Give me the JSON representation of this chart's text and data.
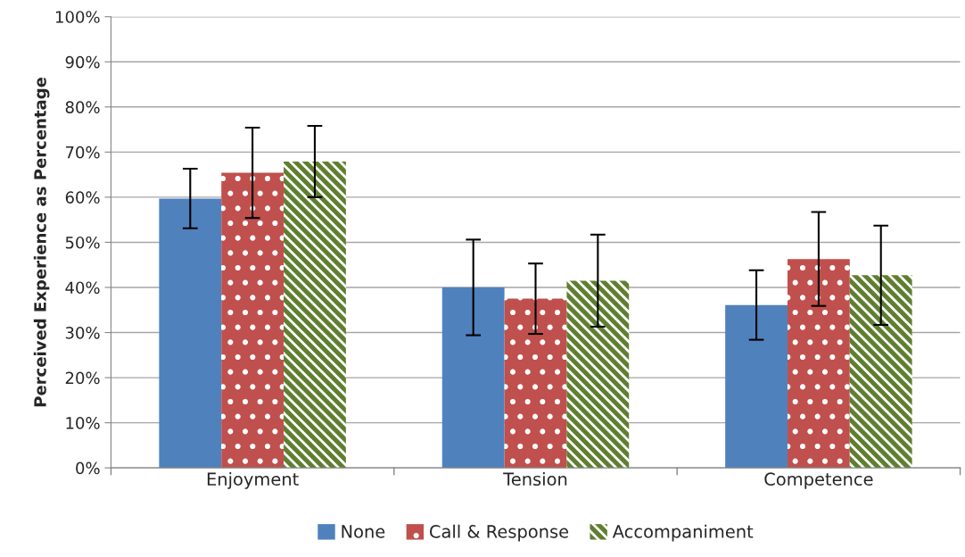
{
  "chart_data": {
    "type": "bar",
    "ylabel": "Perceived Experience as Percentage",
    "categories": [
      "Enjoyment",
      "Tension",
      "Competence"
    ],
    "series": [
      {
        "name": "None",
        "color": "#4f81bd",
        "values": [
          59.7,
          40.0,
          36.1
        ],
        "errors": [
          6.6,
          10.6,
          7.7
        ]
      },
      {
        "name": "Call & Response",
        "color": "#c0504d",
        "values": [
          65.4,
          37.5,
          46.3
        ],
        "errors": [
          10.0,
          7.8,
          10.4
        ]
      },
      {
        "name": "Accompaniment",
        "color": "#5f7f30",
        "values": [
          67.9,
          41.5,
          42.7
        ],
        "errors": [
          7.9,
          10.2,
          11.0
        ]
      }
    ],
    "ylim": [
      0,
      100
    ],
    "yticks": [
      {
        "value": 0,
        "label": "0%"
      },
      {
        "value": 10,
        "label": "10%"
      },
      {
        "value": 20,
        "label": "20%"
      },
      {
        "value": 30,
        "label": "30%"
      },
      {
        "value": 40,
        "label": "40%"
      },
      {
        "value": 50,
        "label": "50%"
      },
      {
        "value": 60,
        "label": "60%"
      },
      {
        "value": 70,
        "label": "70%"
      },
      {
        "value": 80,
        "label": "80%"
      },
      {
        "value": 90,
        "label": "90%"
      },
      {
        "value": 100,
        "label": "100%"
      }
    ],
    "grid": "y",
    "legend": "bottom"
  }
}
